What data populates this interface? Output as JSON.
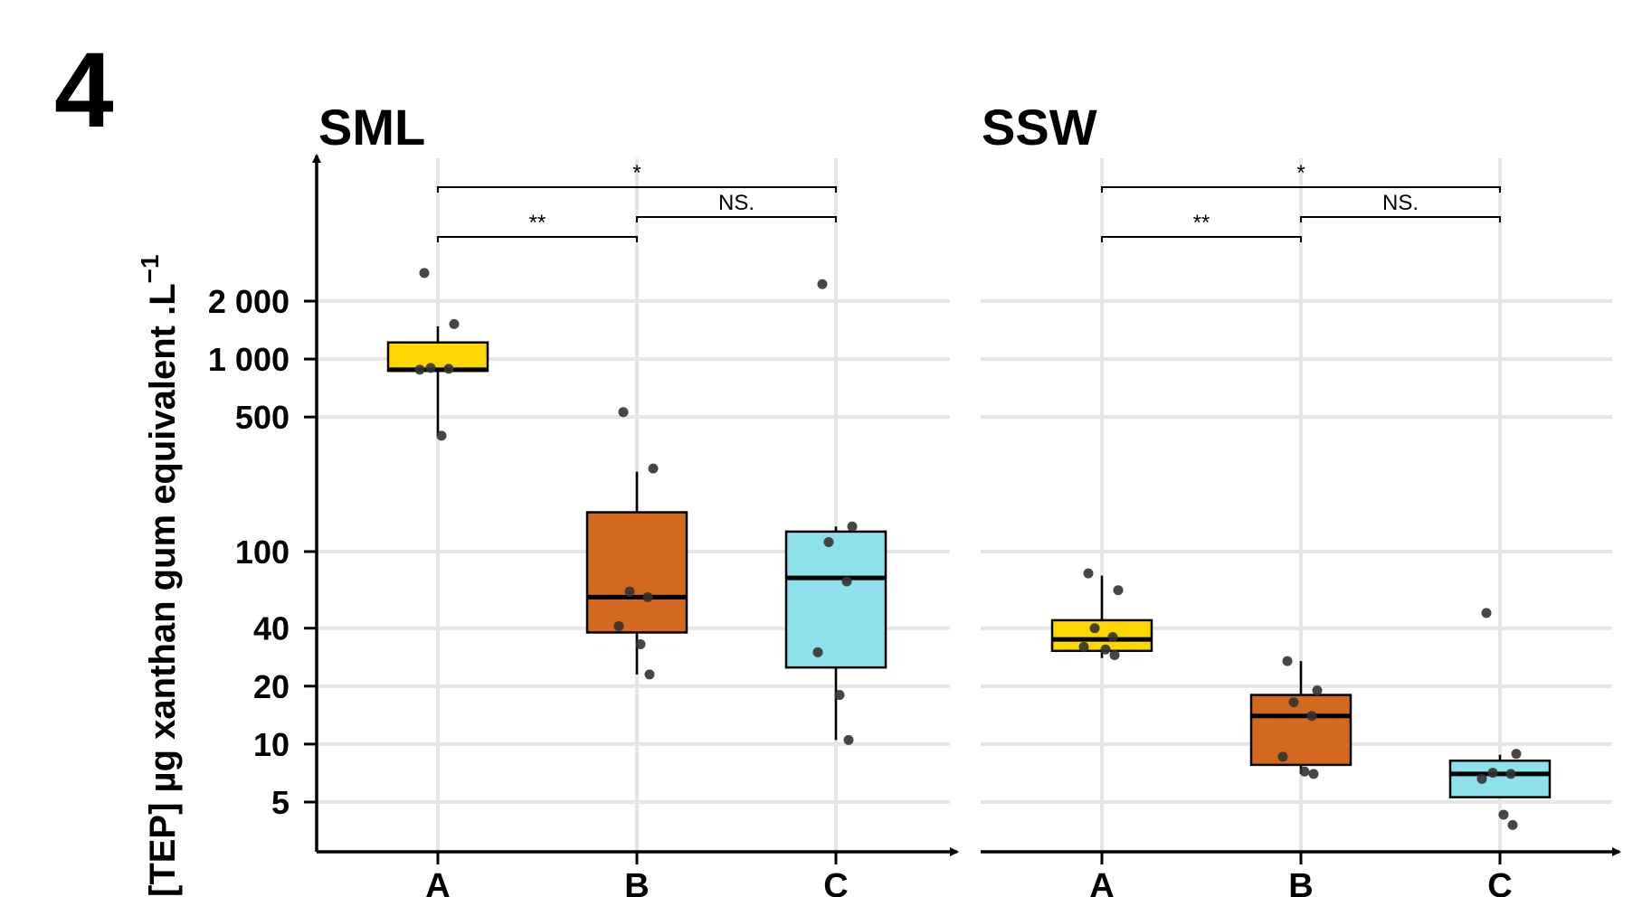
{
  "figure": {
    "panel_number": "4",
    "y_axis_title": "[TEP] µg xanthan gum equivalent .L",
    "y_axis_title_superscript": "−1"
  },
  "colors": {
    "A": "#FFD700",
    "B": "#D2691E",
    "C": "#8EE0EA",
    "grid": "#e6e6e6",
    "points": "#333333"
  },
  "chart_data": [
    {
      "type": "box",
      "title": "SML",
      "y_scale": "log",
      "ylim": [
        2.6,
        7000
      ],
      "y_ticks": [
        5,
        10,
        20,
        40,
        100,
        500,
        1000,
        2000
      ],
      "y_tick_labels": [
        "5",
        "10",
        "20",
        "40",
        "100",
        "500",
        "1 000",
        "2 000"
      ],
      "categories": [
        "A",
        "B",
        "C"
      ],
      "boxes": [
        {
          "category": "A",
          "whisker_low": 400,
          "q1": 870,
          "median": 880,
          "q3": 1220,
          "whisker_high": 1480
        },
        {
          "category": "B",
          "whisker_low": 23,
          "q1": 38,
          "median": 58,
          "q3": 160,
          "whisker_high": 260
        },
        {
          "category": "C",
          "whisker_low": 10.5,
          "q1": 25,
          "median": 73,
          "q3": 127,
          "whisker_high": 135
        }
      ],
      "points": [
        {
          "category": "A",
          "values": [
            2800,
            1520,
            900,
            890,
            880,
            400
          ]
        },
        {
          "category": "B",
          "values": [
            530,
            270,
            62,
            58,
            41,
            33,
            23
          ]
        },
        {
          "category": "C",
          "values": [
            2450,
            135,
            112,
            70,
            30,
            18,
            10.5
          ]
        }
      ],
      "significance": [
        {
          "from": "A",
          "to": "C",
          "label": "*",
          "level": 1
        },
        {
          "from": "B",
          "to": "C",
          "label": "NS.",
          "level": 2
        },
        {
          "from": "A",
          "to": "B",
          "label": "**",
          "level": 3
        }
      ]
    },
    {
      "type": "box",
      "title": "SSW",
      "y_scale": "log",
      "ylim": [
        2.6,
        7000
      ],
      "categories": [
        "A",
        "B",
        "C"
      ],
      "boxes": [
        {
          "category": "A",
          "whisker_low": 28,
          "q1": 30.5,
          "median": 35,
          "q3": 44,
          "whisker_high": 75
        },
        {
          "category": "B",
          "whisker_low": 7,
          "q1": 7.8,
          "median": 14,
          "q3": 18,
          "whisker_high": 27
        },
        {
          "category": "C",
          "whisker_low": 5.3,
          "q1": 5.3,
          "median": 7,
          "q3": 8.2,
          "whisker_high": 8.8
        }
      ],
      "points": [
        {
          "category": "A",
          "values": [
            77,
            63,
            40,
            36,
            32,
            31,
            29
          ]
        },
        {
          "category": "B",
          "values": [
            27,
            19,
            16.5,
            14,
            8.6,
            7.2,
            7
          ]
        },
        {
          "category": "C",
          "values": [
            48,
            8.9,
            7.1,
            7,
            6.6,
            4.3,
            3.8
          ]
        }
      ],
      "significance": [
        {
          "from": "A",
          "to": "C",
          "label": "*",
          "level": 1
        },
        {
          "from": "B",
          "to": "C",
          "label": "NS.",
          "level": 2
        },
        {
          "from": "A",
          "to": "B",
          "label": "**",
          "level": 3
        }
      ]
    }
  ]
}
